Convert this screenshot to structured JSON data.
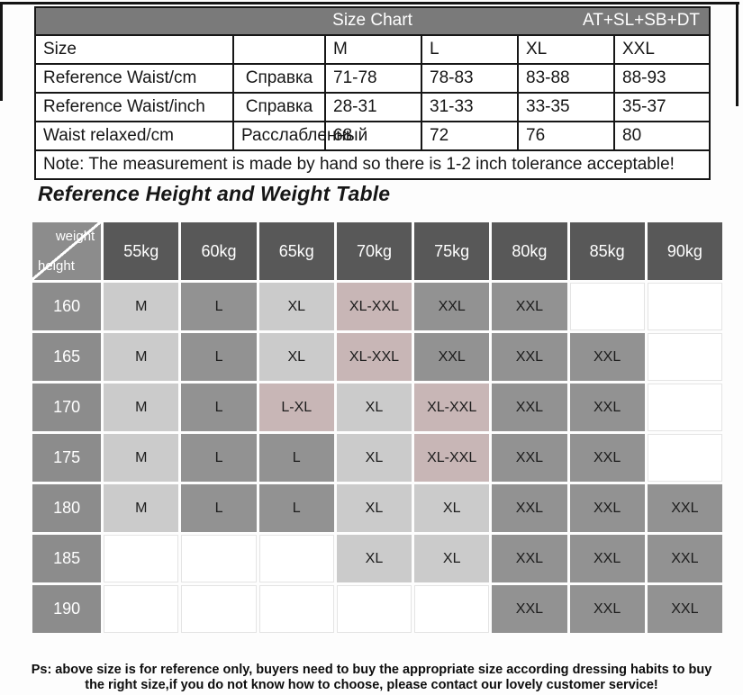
{
  "size_chart": {
    "header": {
      "title": "Size Chart",
      "code": "AT+SL+SB+DT"
    },
    "columns": [
      "M",
      "L",
      "XL",
      "XXL"
    ],
    "rows": [
      {
        "label": "Size",
        "note": "",
        "values": [
          "M",
          "L",
          "XL",
          "XXL"
        ]
      },
      {
        "label": "Reference Waist/cm",
        "note": "Справка",
        "values": [
          "71-78",
          "78-83",
          "83-88",
          "88-93"
        ]
      },
      {
        "label": "Reference Waist/inch",
        "note": "Справка",
        "values": [
          "28-31",
          "31-33",
          "33-35",
          "35-37"
        ]
      },
      {
        "label": "Waist relaxed/cm",
        "note": "Расслабленный",
        "values": [
          "68",
          "72",
          "76",
          "80"
        ]
      }
    ],
    "note": "Note: The measurement is made by hand so there is 1-2 inch tolerance acceptable!"
  },
  "hw_table": {
    "title": "Reference Height and Weight Table",
    "corner": {
      "top": "weight",
      "bottom": "height"
    },
    "weights": [
      "55kg",
      "60kg",
      "65kg",
      "70kg",
      "75kg",
      "80kg",
      "85kg",
      "90kg"
    ],
    "rows": [
      {
        "height": "160",
        "cells": [
          {
            "label": "M",
            "tone": "light"
          },
          {
            "label": "L",
            "tone": "dark"
          },
          {
            "label": "XL",
            "tone": "light"
          },
          {
            "label": "XL-XXL",
            "tone": "pink"
          },
          {
            "label": "XXL",
            "tone": "dark"
          },
          {
            "label": "XXL",
            "tone": "dark"
          },
          {
            "label": "",
            "tone": "empty"
          },
          {
            "label": "",
            "tone": "empty"
          }
        ]
      },
      {
        "height": "165",
        "cells": [
          {
            "label": "M",
            "tone": "light"
          },
          {
            "label": "L",
            "tone": "dark"
          },
          {
            "label": "XL",
            "tone": "light"
          },
          {
            "label": "XL-XXL",
            "tone": "pink"
          },
          {
            "label": "XXL",
            "tone": "dark"
          },
          {
            "label": "XXL",
            "tone": "dark"
          },
          {
            "label": "XXL",
            "tone": "dark"
          },
          {
            "label": "",
            "tone": "empty"
          }
        ]
      },
      {
        "height": "170",
        "cells": [
          {
            "label": "M",
            "tone": "light"
          },
          {
            "label": "L",
            "tone": "dark"
          },
          {
            "label": "L-XL",
            "tone": "pink"
          },
          {
            "label": "XL",
            "tone": "light"
          },
          {
            "label": "XL-XXL",
            "tone": "pink"
          },
          {
            "label": "XXL",
            "tone": "dark"
          },
          {
            "label": "XXL",
            "tone": "dark"
          },
          {
            "label": "",
            "tone": "empty"
          }
        ]
      },
      {
        "height": "175",
        "cells": [
          {
            "label": "M",
            "tone": "light"
          },
          {
            "label": "L",
            "tone": "dark"
          },
          {
            "label": "L",
            "tone": "dark"
          },
          {
            "label": "XL",
            "tone": "light"
          },
          {
            "label": "XL-XXL",
            "tone": "pink"
          },
          {
            "label": "XXL",
            "tone": "dark"
          },
          {
            "label": "XXL",
            "tone": "dark"
          },
          {
            "label": "",
            "tone": "empty"
          }
        ]
      },
      {
        "height": "180",
        "cells": [
          {
            "label": "M",
            "tone": "light"
          },
          {
            "label": "L",
            "tone": "dark"
          },
          {
            "label": "L",
            "tone": "dark"
          },
          {
            "label": "XL",
            "tone": "light"
          },
          {
            "label": "XL",
            "tone": "light"
          },
          {
            "label": "XXL",
            "tone": "dark"
          },
          {
            "label": "XXL",
            "tone": "dark"
          },
          {
            "label": "XXL",
            "tone": "dark"
          }
        ]
      },
      {
        "height": "185",
        "cells": [
          {
            "label": "",
            "tone": "empty"
          },
          {
            "label": "",
            "tone": "empty"
          },
          {
            "label": "",
            "tone": "empty"
          },
          {
            "label": "XL",
            "tone": "light"
          },
          {
            "label": "XL",
            "tone": "light"
          },
          {
            "label": "XXL",
            "tone": "dark"
          },
          {
            "label": "XXL",
            "tone": "dark"
          },
          {
            "label": "XXL",
            "tone": "dark"
          }
        ]
      },
      {
        "height": "190",
        "cells": [
          {
            "label": "",
            "tone": "empty"
          },
          {
            "label": "",
            "tone": "empty"
          },
          {
            "label": "",
            "tone": "empty"
          },
          {
            "label": "",
            "tone": "empty"
          },
          {
            "label": "",
            "tone": "empty"
          },
          {
            "label": "XXL",
            "tone": "dark"
          },
          {
            "label": "XXL",
            "tone": "dark"
          },
          {
            "label": "XXL",
            "tone": "dark"
          }
        ]
      }
    ]
  },
  "footer": {
    "line1": "Ps: above size is for reference only, buyers need to buy the appropriate size according dressing habits to buy",
    "line2": "the right size,if you do not know how to choose, please contact our lovely customer service!"
  },
  "colors": {
    "table_header_gray": "#7a7a7a",
    "weight_header_gray": "#585858",
    "height_header_gray": "#8c8c8c",
    "cell_dark_gray": "#929292",
    "cell_light_gray": "#cbcbcb",
    "cell_pink_gray": "#c8b6b6",
    "frame_black": "#141414"
  }
}
